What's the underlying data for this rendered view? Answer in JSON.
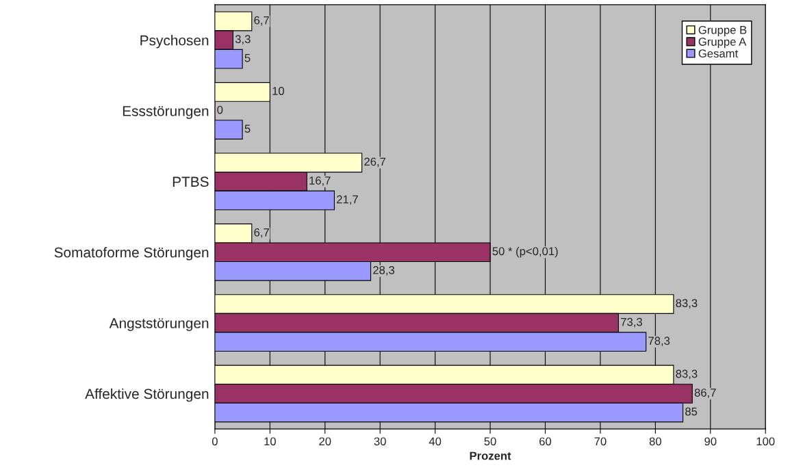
{
  "chart_data": {
    "type": "bar",
    "orientation": "horizontal",
    "xlabel": "Prozent",
    "categories": [
      "Psychosen",
      "Essstörungen",
      "PTBS",
      "Somatoforme Störungen",
      "Angststörungen",
      "Affektive Störungen"
    ],
    "series": [
      {
        "name": "Gruppe B",
        "color": "#ffffcc",
        "values": [
          6.7,
          10,
          26.7,
          6.7,
          83.3,
          83.3
        ],
        "value_labels": [
          "6,7",
          "10",
          "26,7",
          "6,7",
          "83,3",
          "83,3"
        ]
      },
      {
        "name": "Gruppe A",
        "color": "#993366",
        "values": [
          3.3,
          0,
          16.7,
          50,
          73.3,
          86.7
        ],
        "value_labels": [
          "3,3",
          "0",
          "16,7",
          "50 * (p<0,01)",
          "73,3",
          "86,7"
        ]
      },
      {
        "name": "Gesamt",
        "color": "#9999ff",
        "values": [
          5,
          5,
          21.7,
          28.3,
          78.3,
          85
        ],
        "value_labels": [
          "5",
          "5",
          "21,7",
          "28,3",
          "78,3",
          "85"
        ]
      }
    ],
    "xlim": [
      0,
      100
    ],
    "xticks": [
      0,
      10,
      20,
      30,
      40,
      50,
      60,
      70,
      80,
      90,
      100
    ],
    "grid": "x",
    "legend": "top right"
  }
}
